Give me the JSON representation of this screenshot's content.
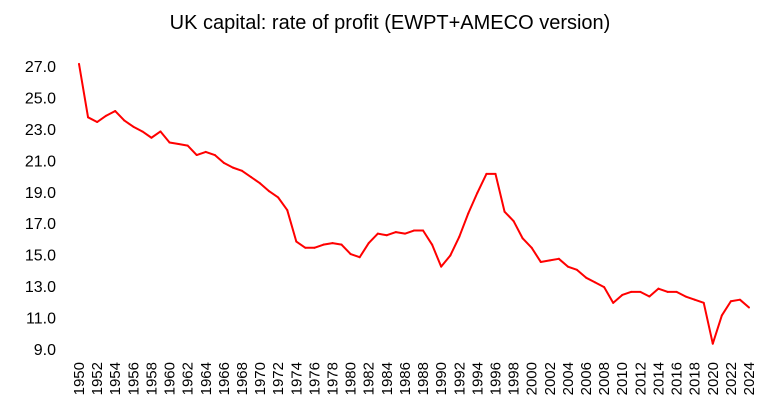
{
  "chart_data": {
    "type": "line",
    "title": "UK capital: rate of profit (EWPT+AMECO version)",
    "xlabel": "",
    "ylabel": "",
    "ylim": [
      9.0,
      27.0
    ],
    "yticks": [
      "27.0",
      "25.0",
      "23.0",
      "21.0",
      "19.0",
      "17.0",
      "15.0",
      "13.0",
      "11.0",
      "9.0"
    ],
    "xlim": [
      1950,
      2024
    ],
    "xticks": [
      "1950",
      "1952",
      "1954",
      "1956",
      "1958",
      "1960",
      "1962",
      "1964",
      "1966",
      "1968",
      "1970",
      "1972",
      "1974",
      "1976",
      "1978",
      "1980",
      "1982",
      "1984",
      "1986",
      "1988",
      "1990",
      "1992",
      "1994",
      "1996",
      "1998",
      "2000",
      "2002",
      "2004",
      "2006",
      "2008",
      "2010",
      "2012",
      "2014",
      "2016",
      "2018",
      "2020",
      "2022",
      "2024"
    ],
    "grid": false,
    "line_color": "#ff0000",
    "x": [
      1950,
      1951,
      1952,
      1953,
      1954,
      1955,
      1956,
      1957,
      1958,
      1959,
      1960,
      1961,
      1962,
      1963,
      1964,
      1965,
      1966,
      1967,
      1968,
      1969,
      1970,
      1971,
      1972,
      1973,
      1974,
      1975,
      1976,
      1977,
      1978,
      1979,
      1980,
      1981,
      1982,
      1983,
      1984,
      1985,
      1986,
      1987,
      1988,
      1989,
      1990,
      1991,
      1992,
      1993,
      1994,
      1995,
      1996,
      1997,
      1998,
      1999,
      2000,
      2001,
      2002,
      2003,
      2004,
      2005,
      2006,
      2007,
      2008,
      2009,
      2010,
      2011,
      2012,
      2013,
      2014,
      2015,
      2016,
      2017,
      2018,
      2019,
      2020,
      2021,
      2022,
      2023,
      2024
    ],
    "series": [
      {
        "name": "",
        "values": [
          27.2,
          23.8,
          23.5,
          23.9,
          24.2,
          23.6,
          23.2,
          22.9,
          22.5,
          22.9,
          22.2,
          22.1,
          22.0,
          21.4,
          21.6,
          21.4,
          20.9,
          20.6,
          20.4,
          20.0,
          19.6,
          19.1,
          18.7,
          17.9,
          15.9,
          15.5,
          15.5,
          15.7,
          15.8,
          15.7,
          15.1,
          14.9,
          15.8,
          16.4,
          16.3,
          16.5,
          16.4,
          16.6,
          16.6,
          15.7,
          14.3,
          15.0,
          16.2,
          17.7,
          19.0,
          20.2,
          20.2,
          17.8,
          17.2,
          16.1,
          15.5,
          14.6,
          14.7,
          14.8,
          14.3,
          14.1,
          13.6,
          13.3,
          13.0,
          12.0,
          12.5,
          12.7,
          12.7,
          12.4,
          12.9,
          12.7,
          12.7,
          12.4,
          12.2,
          12.0,
          9.4,
          11.2,
          12.1,
          12.2,
          11.7
        ]
      }
    ]
  }
}
